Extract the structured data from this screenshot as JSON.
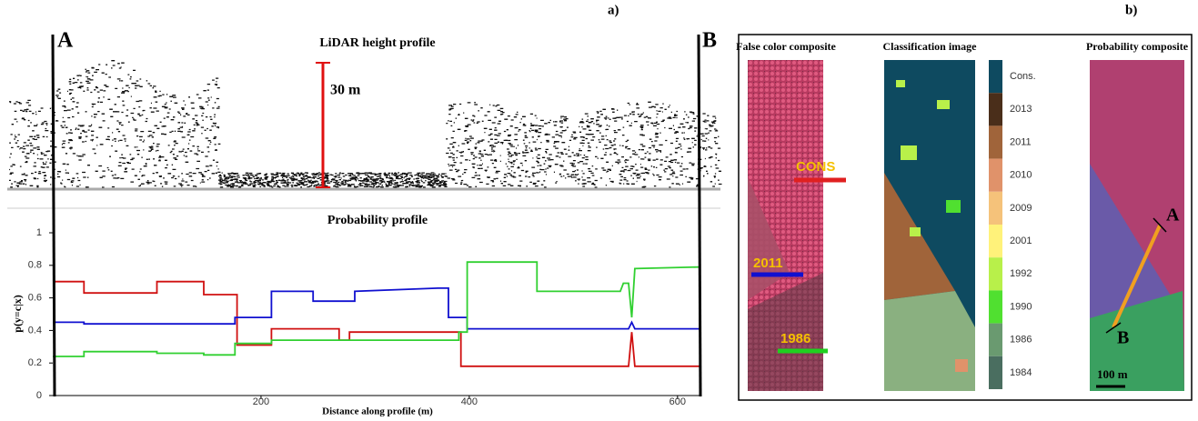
{
  "figure": {
    "panel_a": "a)",
    "panel_b": "b)",
    "start": "A",
    "end": "B",
    "lidar_title": "LiDAR height profile",
    "scale_label": "30 m",
    "false_color_title": "False color composite",
    "classification_title": "Classification image",
    "probability_title": "Probability composite",
    "map_labels": [
      "CONS",
      "2011",
      "1986"
    ],
    "composite_start": "A",
    "composite_end": "B",
    "map_scale": "100 m",
    "colorbar": [
      {
        "label": "Cons.",
        "color": "#0e4a60"
      },
      {
        "label": "2013",
        "color": "#4a2e1a"
      },
      {
        "label": "2011",
        "color": "#a0643a"
      },
      {
        "label": "2010",
        "color": "#e0926a"
      },
      {
        "label": "2009",
        "color": "#f5c27a"
      },
      {
        "label": "2001",
        "color": "#fff27a"
      },
      {
        "label": "1992",
        "color": "#b8f04a"
      },
      {
        "label": "1990",
        "color": "#50e030"
      },
      {
        "label": "1986",
        "color": "#6a9a70"
      },
      {
        "label": "1984",
        "color": "#4a6e60"
      }
    ]
  },
  "chart_data": {
    "type": "line",
    "title": "Probability profile",
    "x_label": "Distance along profile (m)",
    "y_label": "p(y=c|x)",
    "xlim": [
      0,
      622
    ],
    "xticks": [
      200,
      400,
      600
    ],
    "ylim": [
      0,
      1
    ],
    "yticks": [
      0,
      0.2,
      0.4,
      0.6,
      0.8,
      1
    ],
    "series": [
      {
        "color": "#d01010",
        "x": [
          0,
          30,
          30,
          100,
          100,
          145,
          145,
          177,
          177,
          210,
          210,
          275,
          275,
          285,
          285,
          392,
          392,
          553,
          556,
          559,
          622
        ],
        "values": [
          0.7,
          0.7,
          0.63,
          0.63,
          0.7,
          0.7,
          0.62,
          0.62,
          0.31,
          0.31,
          0.41,
          0.41,
          0.34,
          0.34,
          0.39,
          0.39,
          0.18,
          0.18,
          0.39,
          0.18,
          0.18
        ]
      },
      {
        "color": "#1010d0",
        "x": [
          0,
          30,
          30,
          175,
          175,
          210,
          210,
          250,
          250,
          290,
          290,
          370,
          380,
          380,
          398,
          398,
          553,
          556,
          559,
          622
        ],
        "values": [
          0.45,
          0.45,
          0.44,
          0.44,
          0.48,
          0.48,
          0.64,
          0.64,
          0.58,
          0.58,
          0.64,
          0.66,
          0.66,
          0.48,
          0.48,
          0.41,
          0.41,
          0.45,
          0.41,
          0.41
        ]
      },
      {
        "color": "#30d030",
        "x": [
          0,
          30,
          30,
          100,
          100,
          145,
          145,
          175,
          175,
          210,
          210,
          390,
          390,
          398,
          398,
          465,
          465,
          545,
          548,
          553,
          556,
          559,
          622
        ],
        "values": [
          0.24,
          0.24,
          0.27,
          0.27,
          0.26,
          0.26,
          0.25,
          0.25,
          0.32,
          0.32,
          0.34,
          0.34,
          0.39,
          0.39,
          0.82,
          0.82,
          0.64,
          0.64,
          0.69,
          0.69,
          0.48,
          0.78,
          0.79
        ]
      }
    ]
  }
}
